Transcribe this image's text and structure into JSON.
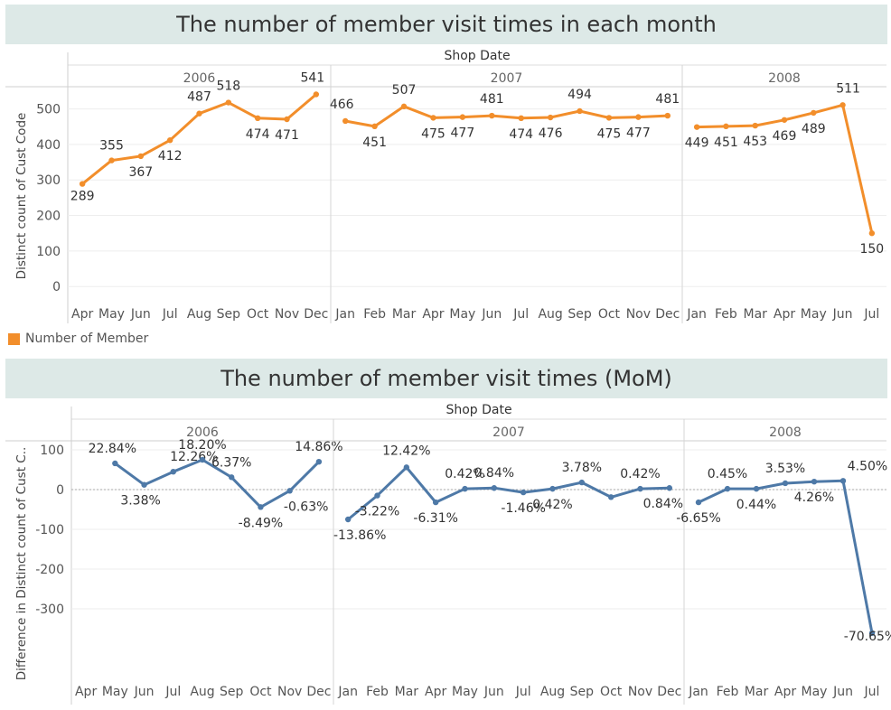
{
  "chart_data": [
    {
      "type": "line",
      "title": "The number of member visit times in each month",
      "xlabel": "Shop Date",
      "ylabel": "Distinct count of Cust Code",
      "ylim": [
        -30,
        560
      ],
      "yticks": [
        0,
        100,
        200,
        300,
        400,
        500
      ],
      "grid": true,
      "color": "#f28e2b",
      "legend": {
        "label": "Number of Member",
        "placement": "bottom-left"
      },
      "years": [
        {
          "label": "2006",
          "months": [
            "Apr",
            "May",
            "Jun",
            "Jul",
            "Aug",
            "Sep",
            "Oct",
            "Nov",
            "Dec"
          ],
          "values": [
            289,
            355,
            367,
            412,
            487,
            518,
            474,
            471,
            541
          ],
          "labels": [
            "289",
            "355",
            "367",
            "412",
            "487",
            "518",
            "474",
            "471",
            "541"
          ]
        },
        {
          "label": "2007",
          "months": [
            "Jan",
            "Feb",
            "Mar",
            "Apr",
            "May",
            "Jun",
            "Jul",
            "Aug",
            "Sep",
            "Oct",
            "Nov",
            "Dec"
          ],
          "values": [
            466,
            451,
            507,
            475,
            477,
            481,
            474,
            476,
            494,
            475,
            477,
            481
          ],
          "labels": [
            "466",
            "451",
            "507",
            "475",
            "477",
            "481",
            "474",
            "476",
            "494",
            "475",
            "477",
            "481"
          ]
        },
        {
          "label": "2008",
          "months": [
            "Jan",
            "Feb",
            "Mar",
            "Apr",
            "May",
            "Jun",
            "Jul"
          ],
          "values": [
            449,
            451,
            453,
            469,
            489,
            511,
            150
          ],
          "labels": [
            "449",
            "451",
            "453",
            "469",
            "489",
            "511",
            "150"
          ]
        }
      ]
    },
    {
      "type": "line",
      "title": "The number of member visit times (MoM)",
      "xlabel": "Shop Date",
      "ylabel": "Difference in Distinct count of Cust C..",
      "ylim": [
        -383,
        130
      ],
      "yticks": [
        100,
        0,
        -100,
        -200,
        -300
      ],
      "grid": true,
      "zero_line": true,
      "color": "#4e79a7",
      "years": [
        {
          "label": "2006",
          "months": [
            "Apr",
            "May",
            "Jun",
            "Jul",
            "Aug",
            "Sep",
            "Oct",
            "Nov",
            "Dec"
          ],
          "values": [
            null,
            66,
            12,
            45,
            75,
            31,
            -44,
            -3,
            70
          ],
          "labels": [
            null,
            "22.84%",
            "3.38%",
            "12.26%",
            "18.20%",
            "6.37%",
            "-8.49%",
            "-0.63%",
            "14.86%"
          ]
        },
        {
          "label": "2007",
          "months": [
            "Jan",
            "Feb",
            "Mar",
            "Apr",
            "May",
            "Jun",
            "Jul",
            "Aug",
            "Sep",
            "Oct",
            "Nov",
            "Dec"
          ],
          "values": [
            -75,
            -15,
            56,
            -32,
            2,
            4,
            -7,
            2,
            18,
            -19,
            2,
            4
          ],
          "labels": [
            "-13.86%",
            "-3.22%",
            "12.42%",
            "-6.31%",
            "0.42%",
            "0.84%",
            "-1.46%",
            "0.42%",
            "3.78%",
            null,
            "0.42%",
            "0.84%"
          ]
        },
        {
          "label": "2008",
          "months": [
            "Jan",
            "Feb",
            "Mar",
            "Apr",
            "May",
            "Jun",
            "Jul"
          ],
          "values": [
            -32,
            2,
            2,
            16,
            20,
            22,
            -361
          ],
          "labels": [
            "-6.65%",
            "0.45%",
            "0.44%",
            "3.53%",
            "4.26%",
            "4.50%",
            "-70.65%"
          ]
        }
      ]
    }
  ]
}
